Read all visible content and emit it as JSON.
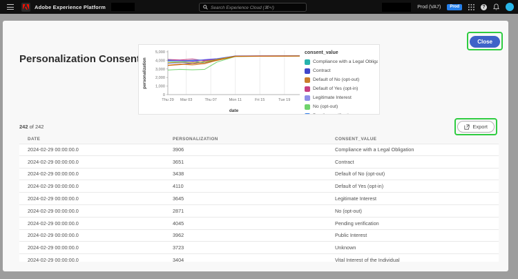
{
  "topnav": {
    "app_title": "Adobe Experience Platform",
    "search_placeholder": "Search Experience Cloud (⌘+/)",
    "environment": "Prod (VA7)",
    "environment_badge": "Prod",
    "icons": [
      "hamburger-icon",
      "adobe-logo",
      "search-icon",
      "app-switcher-icon",
      "help-icon",
      "bell-icon",
      "avatar"
    ]
  },
  "dialog": {
    "title": "Personalization Consent Trends",
    "close_label": "Close",
    "export_label": "Export",
    "count_bold": "242",
    "count_rest": " of 242"
  },
  "colors": {
    "annotation_green": "#2ECC40",
    "accent_blue": "#3E63C8",
    "badge_blue": "#2680EB",
    "nav_black": "#101010",
    "scrim_gray": "#9d9d9d"
  },
  "table": {
    "headers": [
      "DATE",
      "PERSONALIZATION",
      "CONSENT_VALUE"
    ],
    "rows": [
      [
        "2024-02-29 00:00:00.0",
        "3906",
        "Compliance with a Legal Obligation"
      ],
      [
        "2024-02-29 00:00:00.0",
        "3651",
        "Contract"
      ],
      [
        "2024-02-29 00:00:00.0",
        "3438",
        "Default of No (opt-out)"
      ],
      [
        "2024-02-29 00:00:00.0",
        "4110",
        "Default of Yes (opt-in)"
      ],
      [
        "2024-02-29 00:00:00.0",
        "3645",
        "Legitimate Interest"
      ],
      [
        "2024-02-29 00:00:00.0",
        "2871",
        "No (opt-out)"
      ],
      [
        "2024-02-29 00:00:00.0",
        "4045",
        "Pending verification"
      ],
      [
        "2024-02-29 00:00:00.0",
        "3962",
        "Public Interest"
      ],
      [
        "2024-02-29 00:00:00.0",
        "3723",
        "Unknown"
      ],
      [
        "2024-02-29 00:00:00.0",
        "3404",
        "Vital Interest of the Individual"
      ]
    ]
  },
  "chart_data": {
    "type": "line",
    "title": "",
    "xlabel": "date",
    "ylabel": "personalization",
    "legend_title": "consent_value",
    "legend_position": "right",
    "grid": "vertical",
    "ylim": [
      0,
      5000
    ],
    "yticks": [
      0,
      1000,
      2000,
      3000,
      4000,
      5000
    ],
    "xtick_days": [
      0,
      3,
      7,
      11,
      15,
      19
    ],
    "xtick_labels": [
      "Thu 29",
      "Mar 03",
      "Thu 07",
      "Mon 11",
      "Fri 15",
      "Tue 19"
    ],
    "x_days": [
      0,
      2,
      4,
      6,
      8,
      11,
      15,
      19,
      21.5
    ],
    "xmax": 21.5,
    "series": [
      {
        "name": "Compliance with a Legal Obligation",
        "color": "#27b3ad",
        "values": [
          3906,
          3820,
          3950,
          3720,
          4100,
          4480,
          4500,
          4510,
          4520
        ]
      },
      {
        "name": "Contract",
        "color": "#4046CA",
        "values": [
          3651,
          3760,
          3620,
          3900,
          4050,
          4500,
          4520,
          4515,
          4525
        ]
      },
      {
        "name": "Default of No (opt-out)",
        "color": "#CB7D2B",
        "values": [
          3438,
          3560,
          3460,
          3600,
          4000,
          4470,
          4490,
          4500,
          4510
        ]
      },
      {
        "name": "Default of Yes (opt-in)",
        "color": "#C73E82",
        "values": [
          4110,
          4050,
          4160,
          3950,
          4150,
          4520,
          4530,
          4540,
          4530
        ]
      },
      {
        "name": "Legitimate Interest",
        "color": "#8E8FE8",
        "values": [
          3645,
          3720,
          3820,
          4100,
          4200,
          4510,
          4500,
          4505,
          4515
        ]
      },
      {
        "name": "No (opt-out)",
        "color": "#6FD36C",
        "values": [
          2871,
          2950,
          2900,
          2950,
          3800,
          4450,
          4480,
          4490,
          4500
        ]
      },
      {
        "name": "Pending verification",
        "color": "#2979E8",
        "values": [
          4045,
          3950,
          4010,
          4060,
          4180,
          4500,
          4510,
          4520,
          4525
        ]
      },
      {
        "name": "Public Interest",
        "color": "#7C3AD0",
        "values": [
          3962,
          4010,
          3910,
          4050,
          4150,
          4490,
          4505,
          4510,
          4520
        ]
      },
      {
        "name": "Unknown",
        "color": "#C9B400",
        "values": [
          3723,
          3800,
          3750,
          3850,
          4100,
          4480,
          4495,
          4500,
          4510
        ]
      },
      {
        "name": "Vital Interest of the Individual",
        "color": "#CB5D00",
        "values": [
          3404,
          3500,
          3600,
          3700,
          4000,
          4460,
          4480,
          4490,
          4500
        ]
      }
    ]
  }
}
